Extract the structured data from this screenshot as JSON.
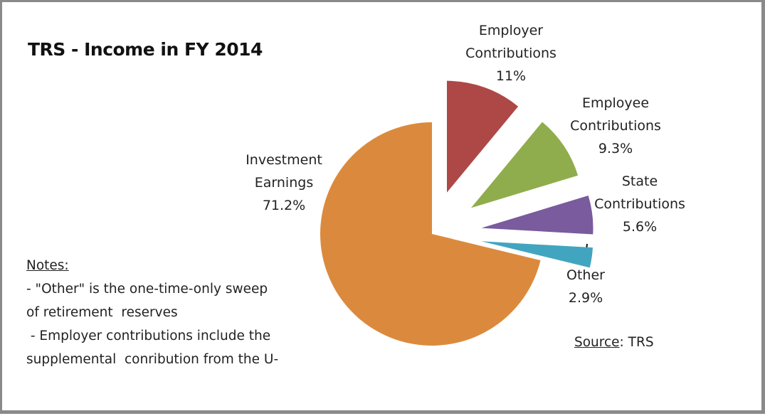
{
  "chart_data": {
    "type": "pie",
    "title": "TRS - Income in FY 2014",
    "categories": [
      "Employer Contributions",
      "Employee Contributions",
      "State Contributions",
      "Other",
      "Investment Earnings"
    ],
    "values": [
      11,
      9.3,
      5.6,
      2.9,
      71.2
    ],
    "value_labels": [
      "11%",
      "9.3%",
      "5.6%",
      "2.9%",
      "71.2%"
    ],
    "colors": [
      "#ad4846",
      "#8fad4c",
      "#7a5b9e",
      "#42a5bf",
      "#db8a3d"
    ],
    "notes_title": "Notes:",
    "notes": [
      "- \"Other\" is the one-time-only sweep",
      "of retirement  reserves",
      " - Employer contributions include the",
      "supplemental  conribution from the U-"
    ],
    "source_label": "Source",
    "source_text": ": TRS"
  }
}
